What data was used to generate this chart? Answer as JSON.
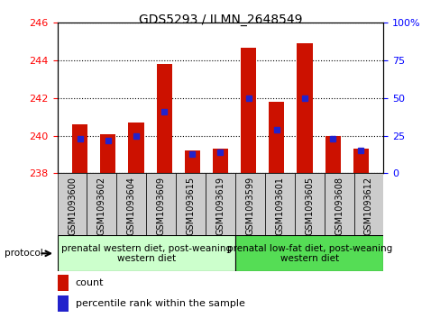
{
  "title": "GDS5293 / ILMN_2648549",
  "samples": [
    "GSM1093600",
    "GSM1093602",
    "GSM1093604",
    "GSM1093609",
    "GSM1093615",
    "GSM1093619",
    "GSM1093599",
    "GSM1093601",
    "GSM1093605",
    "GSM1093608",
    "GSM1093612"
  ],
  "counts": [
    240.6,
    240.1,
    240.7,
    243.8,
    239.2,
    239.3,
    244.7,
    241.8,
    244.9,
    240.0,
    239.3
  ],
  "percentiles": [
    23,
    22,
    25,
    41,
    13,
    14,
    50,
    29,
    50,
    23,
    15
  ],
  "ymin": 238,
  "ymax": 246,
  "yticks": [
    238,
    240,
    242,
    244,
    246
  ],
  "y2min": 0,
  "y2max": 100,
  "y2ticks": [
    0,
    25,
    50,
    75,
    100
  ],
  "bar_color": "#cc1100",
  "percentile_color": "#2222cc",
  "group1_label": "prenatal western diet, post-weaning\nwestern diet",
  "group2_label": "prenatal low-fat diet, post-weaning\nwestern diet",
  "group1_count": 6,
  "group2_count": 5,
  "group1_color": "#ccffcc",
  "group2_color": "#55dd55",
  "legend_count_label": "count",
  "legend_pct_label": "percentile rank within the sample",
  "bar_width": 0.55,
  "protocol_label": "protocol",
  "tick_bg_color": "#cccccc",
  "plot_bg_color": "#ffffff",
  "title_fontsize": 10,
  "axis_label_fontsize": 8,
  "tick_label_fontsize": 7,
  "group_label_fontsize": 7.5
}
